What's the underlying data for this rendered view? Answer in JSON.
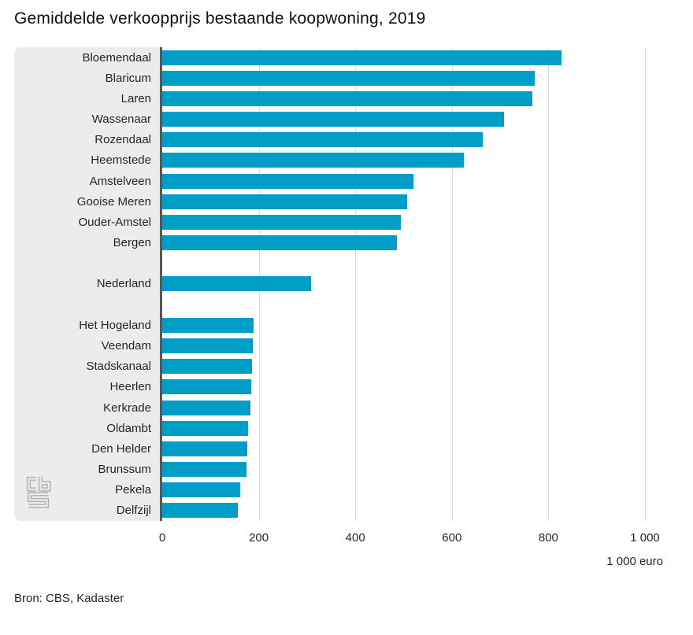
{
  "page": {
    "title": "Gemiddelde verkoopprijs bestaande koopwoning, 2019",
    "source": "Bron: CBS, Kadaster"
  },
  "chart_data": {
    "type": "bar",
    "orientation": "horizontal",
    "title": "Gemiddelde verkoopprijs bestaande koopwoning, 2019",
    "unit_label": "1 000 euro",
    "source": "Bron: CBS, Kadaster",
    "xlim": [
      0,
      1000
    ],
    "x_tick_values": [
      0,
      200,
      400,
      600,
      800,
      1000
    ],
    "x_tick_labels": [
      "0",
      "200",
      "400",
      "600",
      "800",
      "1 000"
    ],
    "grid": true,
    "legend": false,
    "bar_color": "#009dc6",
    "panel_color": "#ececec",
    "axis_line_color": "#58585a",
    "groups": [
      {
        "name": "highest-municipalities",
        "items": [
          {
            "label": "Bloemendaal",
            "value": 827
          },
          {
            "label": "Blaricum",
            "value": 772
          },
          {
            "label": "Laren",
            "value": 766
          },
          {
            "label": "Wassenaar",
            "value": 708
          },
          {
            "label": "Rozendaal",
            "value": 664
          },
          {
            "label": "Heemstede",
            "value": 624
          },
          {
            "label": "Amstelveen",
            "value": 521
          },
          {
            "label": "Gooise Meren",
            "value": 507
          },
          {
            "label": "Ouder-Amstel",
            "value": 494
          },
          {
            "label": "Bergen",
            "value": 486
          }
        ]
      },
      {
        "name": "national-average",
        "items": [
          {
            "label": "Nederland",
            "value": 308
          }
        ]
      },
      {
        "name": "lowest-municipalities",
        "items": [
          {
            "label": "Het Hogeland",
            "value": 190
          },
          {
            "label": "Veendam",
            "value": 188
          },
          {
            "label": "Stadskanaal",
            "value": 186
          },
          {
            "label": "Heerlen",
            "value": 184
          },
          {
            "label": "Kerkrade",
            "value": 183
          },
          {
            "label": "Oldambt",
            "value": 177
          },
          {
            "label": "Den Helder",
            "value": 176
          },
          {
            "label": "Brunssum",
            "value": 175
          },
          {
            "label": "Pekela",
            "value": 161
          },
          {
            "label": "Delfzijl",
            "value": 156
          }
        ]
      }
    ]
  }
}
